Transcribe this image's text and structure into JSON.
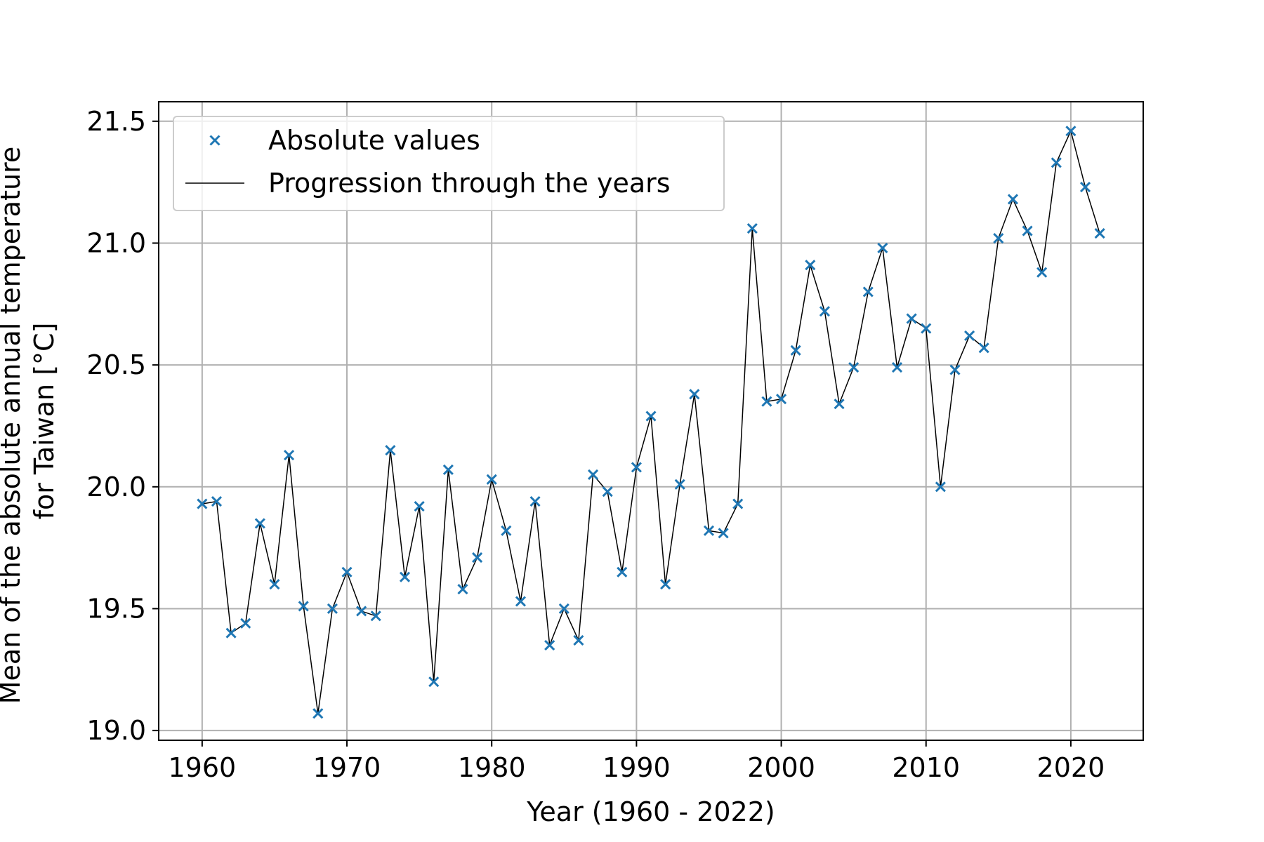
{
  "chart_data": {
    "type": "line",
    "xlabel": "Year (1960 - 2022)",
    "ylabel_lines": [
      "Mean of the absolute annual temperature",
      "for Taiwan [°C]"
    ],
    "xlim": [
      1957,
      2025
    ],
    "ylim": [
      18.96,
      21.58
    ],
    "x_ticks": [
      1960,
      1970,
      1980,
      1990,
      2000,
      2010,
      2020
    ],
    "y_ticks": [
      19.0,
      19.5,
      20.0,
      20.5,
      21.0,
      21.5
    ],
    "y_tick_labels": [
      "19.0",
      "19.5",
      "20.0",
      "20.5",
      "21.0",
      "21.5"
    ],
    "grid": true,
    "legend_position": "top-left",
    "series": [
      {
        "name": "Absolute values",
        "marker": "x",
        "color": "#1f77b4",
        "x": [
          1960,
          1961,
          1962,
          1963,
          1964,
          1965,
          1966,
          1967,
          1968,
          1969,
          1970,
          1971,
          1972,
          1973,
          1974,
          1975,
          1976,
          1977,
          1978,
          1979,
          1980,
          1981,
          1982,
          1983,
          1984,
          1985,
          1986,
          1987,
          1988,
          1989,
          1990,
          1991,
          1992,
          1993,
          1994,
          1995,
          1996,
          1997,
          1998,
          1999,
          2000,
          2001,
          2002,
          2003,
          2004,
          2005,
          2006,
          2007,
          2008,
          2009,
          2010,
          2011,
          2012,
          2013,
          2014,
          2015,
          2016,
          2017,
          2018,
          2019,
          2020,
          2021,
          2022
        ],
        "y": [
          19.93,
          19.94,
          19.4,
          19.44,
          19.85,
          19.6,
          20.13,
          19.51,
          19.07,
          19.5,
          19.65,
          19.49,
          19.47,
          20.15,
          19.63,
          19.92,
          19.2,
          20.07,
          19.58,
          19.71,
          20.03,
          19.82,
          19.53,
          19.94,
          19.35,
          19.5,
          19.37,
          20.05,
          19.98,
          19.65,
          20.08,
          20.29,
          19.6,
          20.01,
          20.38,
          19.82,
          19.81,
          19.93,
          21.06,
          20.35,
          20.36,
          20.56,
          20.91,
          20.72,
          20.34,
          20.49,
          20.8,
          20.98,
          20.49,
          20.69,
          20.65,
          20.0,
          20.48,
          20.62,
          20.57,
          21.02,
          21.18,
          21.05,
          20.88,
          21.33,
          21.46,
          21.23,
          21.04
        ]
      },
      {
        "name": "Progression through the years",
        "line": true,
        "color": "#000000"
      }
    ]
  }
}
